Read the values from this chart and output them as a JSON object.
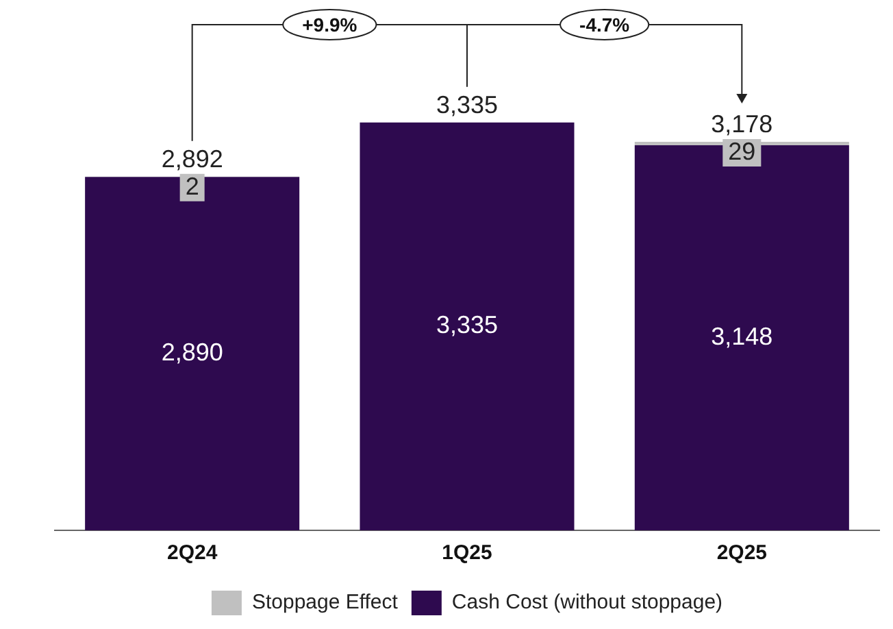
{
  "chart_data": {
    "type": "bar",
    "categories": [
      "2Q24",
      "1Q25",
      "2Q25"
    ],
    "stacked": true,
    "series": [
      {
        "name": "Cash Cost (without stoppage)",
        "color": "#2e0a4f",
        "values": [
          2890,
          3335,
          3148
        ],
        "value_labels": [
          "2,890",
          "3,335",
          "3,148"
        ]
      },
      {
        "name": "Stoppage Effect",
        "color": "#c0c0c0",
        "values": [
          2,
          null,
          29
        ],
        "value_labels": [
          "2",
          null,
          "29"
        ]
      }
    ],
    "totals": [
      "2,892",
      "3,335",
      "3,178"
    ],
    "annotations": [
      "+9.9%",
      "-4.7%"
    ],
    "grid": false,
    "legend": "bottom"
  }
}
